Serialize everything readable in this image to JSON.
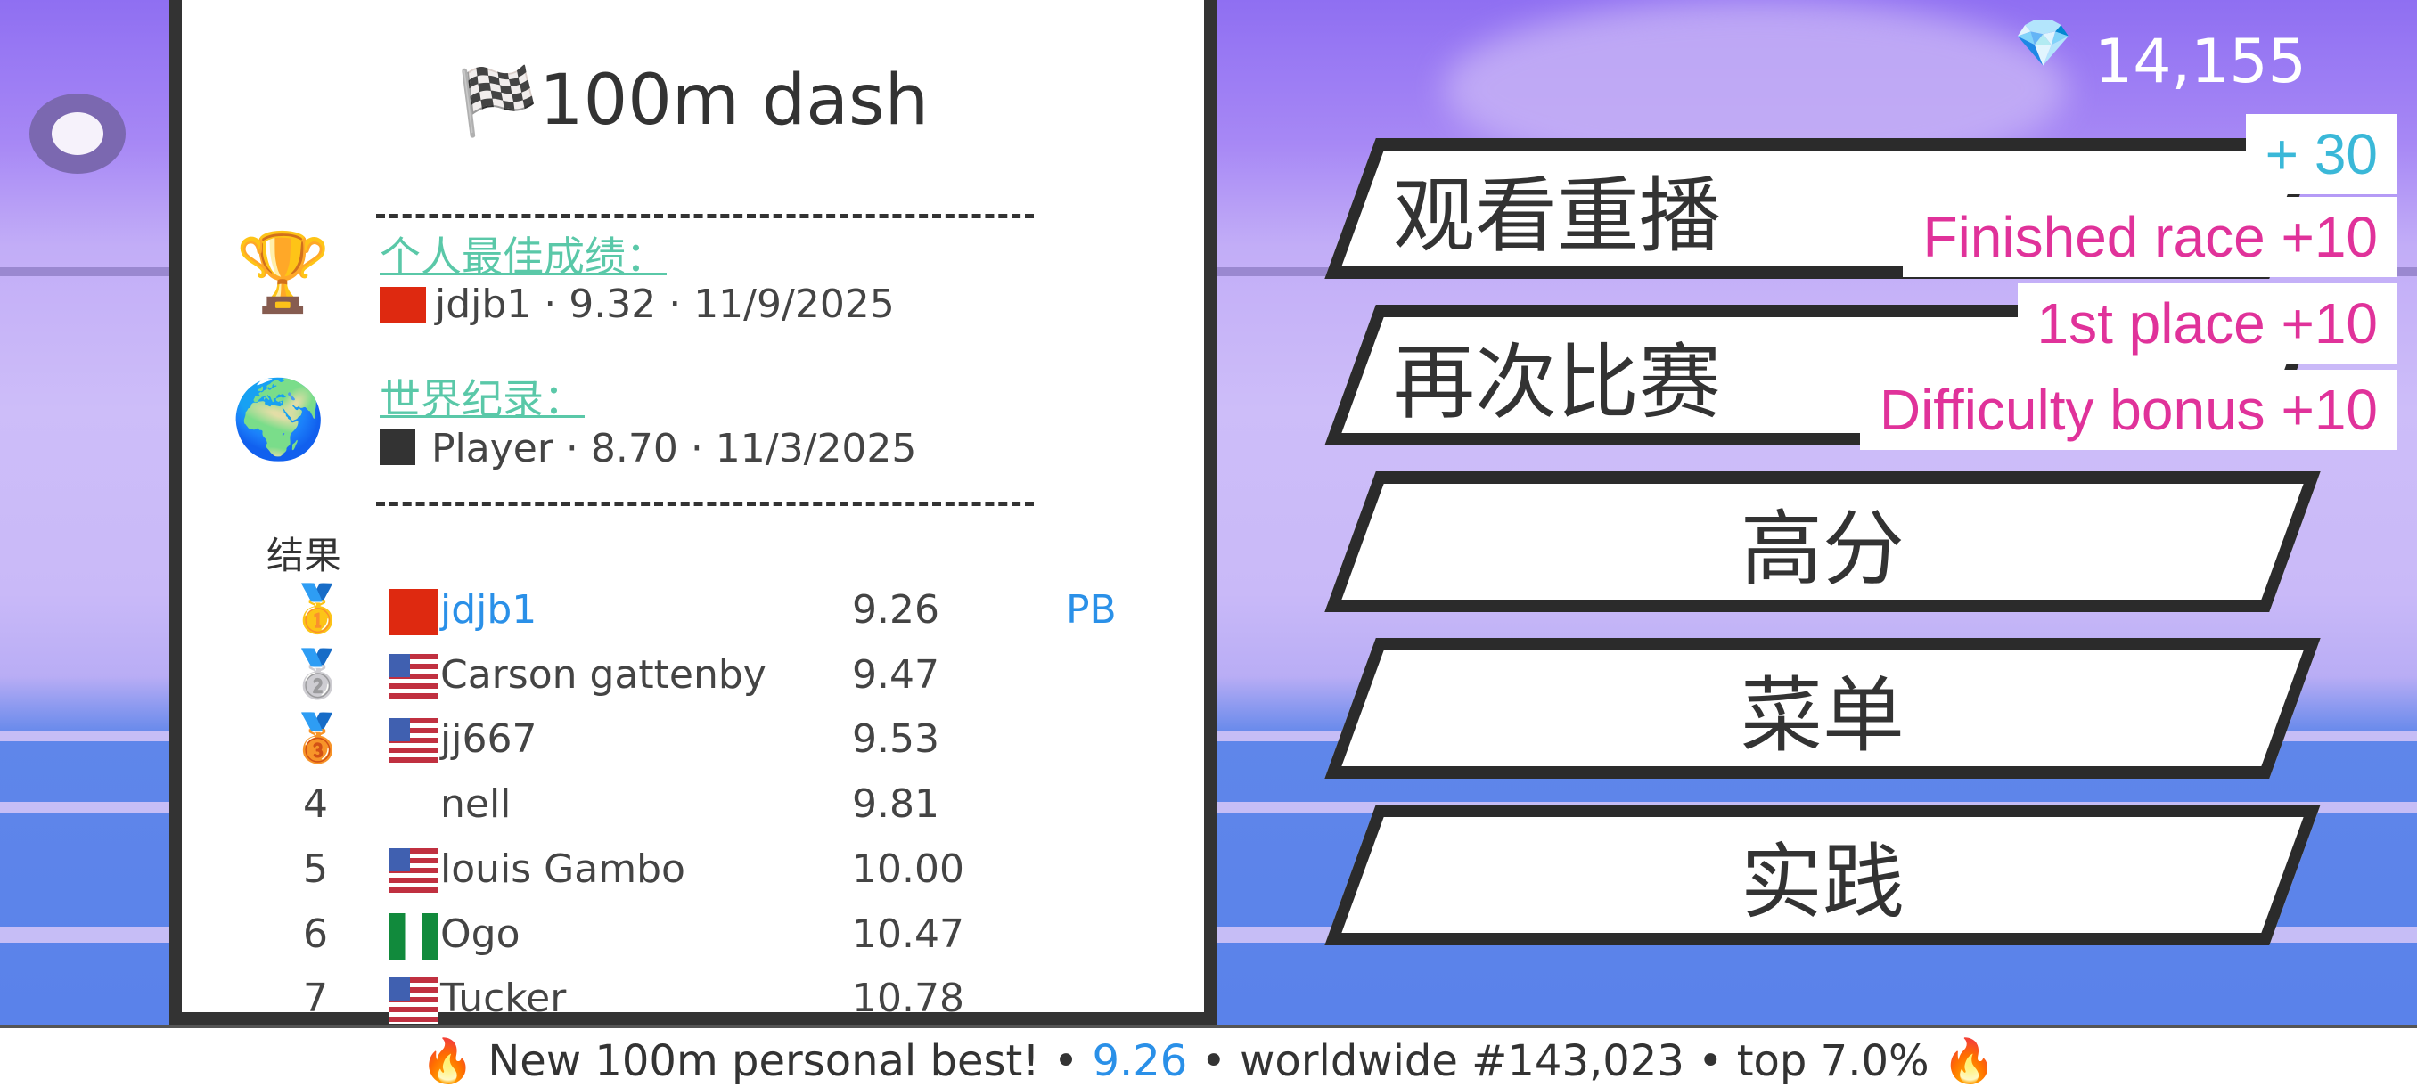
{
  "hud": {
    "gem_icon": "diamond-icon",
    "gem_count": "14,155",
    "menu_icon": "circle-icon"
  },
  "panel": {
    "title": "100m dash",
    "title_icon": "checkered-flag-icon",
    "personal_best": {
      "label": "个人最佳成绩：",
      "icon": "trophy-icon",
      "flag": "china",
      "name": "jdjb1",
      "time": "9.32",
      "date": "11/9/2025",
      "line": "jdjb1 · 9.32 · 11/9/2025"
    },
    "world_record": {
      "label": "世界纪录：",
      "icon": "globe-icon",
      "flag": "black-flag",
      "line": "Player · 8.70 · 11/3/2025"
    },
    "results_label": "结果",
    "results": [
      {
        "rank": "1",
        "medal": "gold",
        "flag": "china",
        "name": "jdjb1",
        "time": "9.26",
        "badge": "PB",
        "highlight": true
      },
      {
        "rank": "2",
        "medal": "silver",
        "flag": "usa",
        "name": "Carson gattenby",
        "time": "9.47",
        "badge": ""
      },
      {
        "rank": "3",
        "medal": "bronze",
        "flag": "usa",
        "name": "jj667",
        "time": "9.53",
        "badge": ""
      },
      {
        "rank": "4",
        "medal": "",
        "flag": "",
        "name": "nell",
        "time": "9.81",
        "badge": ""
      },
      {
        "rank": "5",
        "medal": "",
        "flag": "usa",
        "name": "louis Gambo",
        "time": "10.00",
        "badge": ""
      },
      {
        "rank": "6",
        "medal": "",
        "flag": "nigeria",
        "name": "Ogo",
        "time": "10.47",
        "badge": ""
      },
      {
        "rank": "7",
        "medal": "",
        "flag": "usa",
        "name": "Tucker",
        "time": "10.78",
        "badge": ""
      }
    ]
  },
  "menu": {
    "buttons": [
      "观看重播",
      "再次比赛",
      "高分",
      "菜单",
      "实践"
    ]
  },
  "rewards": {
    "total": "+ 30",
    "items": [
      "Finished race +10",
      "1st place +10",
      "Difficulty bonus +10"
    ]
  },
  "banner": {
    "icon": "fire-icon",
    "text": "New 100m personal best!",
    "sep": "•",
    "time": "9.26",
    "rank": "worldwide #143,023",
    "percentile": "top 7.0%"
  },
  "colors": {
    "accent_green": "#5ac8a8",
    "highlight_blue": "#2a90e8",
    "reward_pink": "#e0329a",
    "reward_blue": "#3ab8d8"
  }
}
